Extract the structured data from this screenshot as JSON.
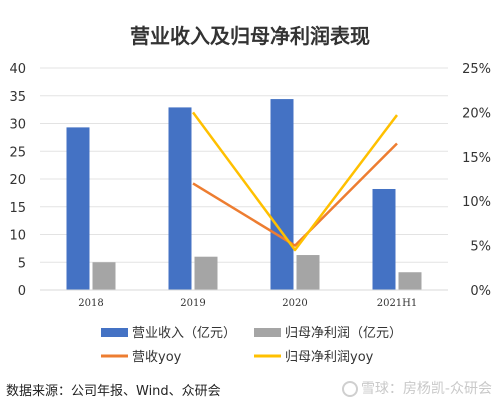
{
  "chart_data": {
    "type": "bar",
    "title": "营业收入及归母净利润表现",
    "categories": [
      "2018",
      "2019",
      "2020",
      "2021H1"
    ],
    "series": [
      {
        "name": "营业收入（亿元）",
        "kind": "bar",
        "axis": "left",
        "color": "#4472C4",
        "values": [
          29.3,
          32.9,
          34.4,
          18.2
        ]
      },
      {
        "name": "归母净利润（亿元）",
        "kind": "bar",
        "axis": "left",
        "color": "#A5A5A5",
        "values": [
          5.0,
          6.0,
          6.3,
          3.2
        ]
      },
      {
        "name": "营收yoy",
        "kind": "line",
        "axis": "right",
        "color": "#ED7D31",
        "values": [
          null,
          0.12,
          0.05,
          0.165
        ]
      },
      {
        "name": "归母净利润yoy",
        "kind": "line",
        "axis": "right",
        "color": "#FFC000",
        "values": [
          null,
          0.2,
          0.045,
          0.197
        ]
      }
    ],
    "ylim_left": [
      0,
      40
    ],
    "yticks_left": [
      "0",
      "5",
      "10",
      "15",
      "20",
      "25",
      "30",
      "35",
      "40"
    ],
    "ylim_right": [
      0,
      0.25
    ],
    "yticks_right": [
      "0%",
      "5%",
      "10%",
      "15%",
      "20%",
      "25%"
    ],
    "grid": true,
    "legend_position": "bottom"
  },
  "legend": {
    "revenue": "营业收入（亿元）",
    "profit": "归母净利润（亿元）",
    "revenue_yoy": "营收yoy",
    "profit_yoy": "归母净利润yoy"
  },
  "footer": {
    "source": "数据来源：公司年报、Wind、众研会",
    "watermark": "雪球：房杨凯-众研会"
  }
}
